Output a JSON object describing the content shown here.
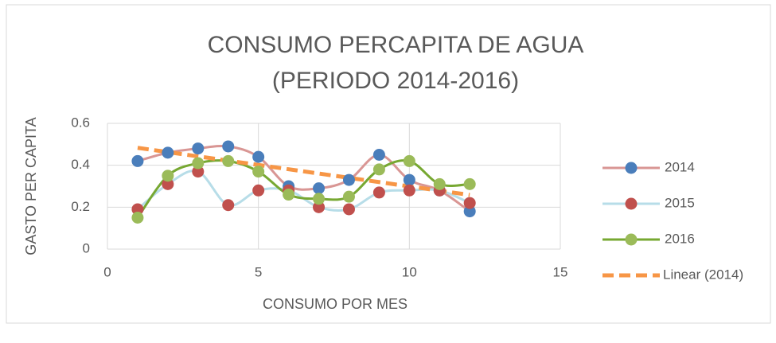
{
  "chart_data": {
    "type": "scatter",
    "title": [
      "CONSUMO PERCAPITA DE AGUA",
      "(PERIODO 2014-2016)"
    ],
    "x_label": "CONSUMO POR MES",
    "y_label": "GASTO PER CAPITA",
    "x": [
      1,
      2,
      3,
      4,
      5,
      6,
      7,
      8,
      9,
      10,
      11,
      12
    ],
    "series": [
      {
        "name": "2014",
        "line_color": "#d99694",
        "color": "#4a7ebb",
        "values": [
          0.42,
          0.46,
          0.48,
          0.49,
          0.44,
          0.3,
          0.29,
          0.33,
          0.45,
          0.33,
          0.28,
          0.18
        ]
      },
      {
        "name": "2015",
        "line_color": "#b7dde8",
        "color": "#c0504d",
        "values": [
          0.19,
          0.31,
          0.37,
          0.21,
          0.28,
          0.28,
          0.2,
          0.19,
          0.27,
          0.28,
          0.28,
          0.22
        ]
      },
      {
        "name": "2016",
        "line_color": "#77a832",
        "color": "#9bbb59",
        "values": [
          0.15,
          0.35,
          0.41,
          0.42,
          0.37,
          0.26,
          0.24,
          0.25,
          0.38,
          0.42,
          0.31,
          0.31
        ]
      }
    ],
    "trendline": {
      "name": "Linear (2014)",
      "series": 0,
      "color": "#f79646"
    },
    "smooth": true,
    "xlim": [
      0,
      15
    ],
    "xticks": [
      0,
      5,
      10,
      15
    ],
    "ylim": [
      0,
      0.6
    ],
    "yticks": [
      0,
      0.2,
      0.4,
      0.6
    ],
    "grid": true,
    "legend": "right"
  }
}
